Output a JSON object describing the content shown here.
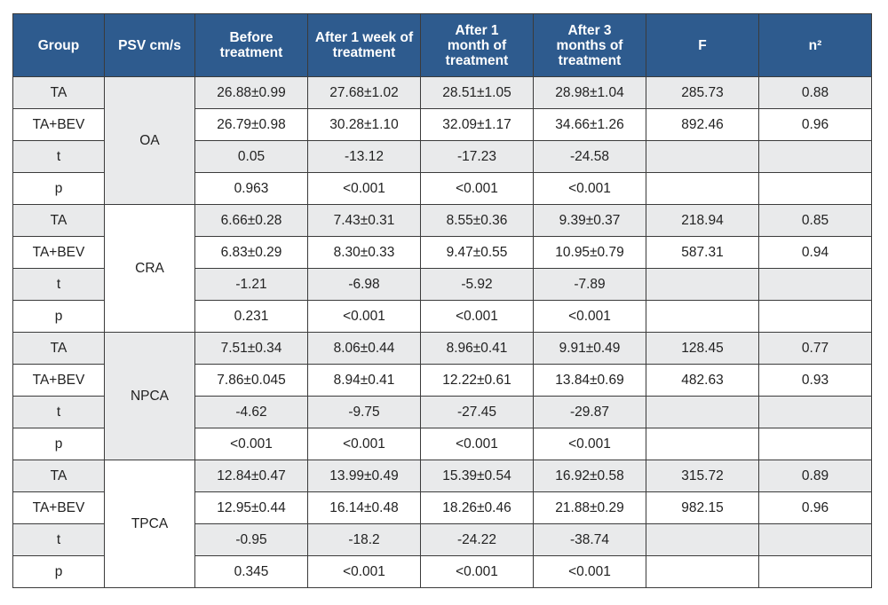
{
  "table": {
    "headers": [
      "Group",
      "PSV cm/s",
      "Before treatment",
      "After 1 week of treatment",
      "After 1 month of treatment",
      "After 3 months of treatment",
      "F",
      "n²"
    ],
    "blocks": [
      {
        "vessel": "OA",
        "rows": [
          {
            "group": "TA",
            "before": "26.88±0.99",
            "week1": "27.68±1.02",
            "month1": "28.51±1.05",
            "month3": "28.98±1.04",
            "f": "285.73",
            "n2": "0.88"
          },
          {
            "group": "TA+BEV",
            "before": "26.79±0.98",
            "week1": "30.28±1.10",
            "month1": "32.09±1.17",
            "month3": "34.66±1.26",
            "f": "892.46",
            "n2": "0.96"
          },
          {
            "group": "t",
            "before": "0.05",
            "week1": "-13.12",
            "month1": "-17.23",
            "month3": "-24.58",
            "f": "",
            "n2": ""
          },
          {
            "group": "p",
            "before": "0.963",
            "week1": "<0.001",
            "month1": "<0.001",
            "month3": "<0.001",
            "f": "",
            "n2": ""
          }
        ]
      },
      {
        "vessel": "CRA",
        "rows": [
          {
            "group": "TA",
            "before": "6.66±0.28",
            "week1": "7.43±0.31",
            "month1": "8.55±0.36",
            "month3": "9.39±0.37",
            "f": "218.94",
            "n2": "0.85"
          },
          {
            "group": "TA+BEV",
            "before": "6.83±0.29",
            "week1": "8.30±0.33",
            "month1": "9.47±0.55",
            "month3": "10.95±0.79",
            "f": "587.31",
            "n2": "0.94"
          },
          {
            "group": "t",
            "before": "-1.21",
            "week1": "-6.98",
            "month1": "-5.92",
            "month3": "-7.89",
            "f": "",
            "n2": ""
          },
          {
            "group": "p",
            "before": "0.231",
            "week1": "<0.001",
            "month1": "<0.001",
            "month3": "<0.001",
            "f": "",
            "n2": ""
          }
        ]
      },
      {
        "vessel": "NPCA",
        "rows": [
          {
            "group": "TA",
            "before": "7.51±0.34",
            "week1": "8.06±0.44",
            "month1": "8.96±0.41",
            "month3": "9.91±0.49",
            "f": "128.45",
            "n2": "0.77"
          },
          {
            "group": "TA+BEV",
            "before": "7.86±0.045",
            "week1": "8.94±0.41",
            "month1": "12.22±0.61",
            "month3": "13.84±0.69",
            "f": "482.63",
            "n2": "0.93"
          },
          {
            "group": "t",
            "before": "-4.62",
            "week1": "-9.75",
            "month1": "-27.45",
            "month3": "-29.87",
            "f": "",
            "n2": ""
          },
          {
            "group": "p",
            "before": "<0.001",
            "week1": "<0.001",
            "month1": "<0.001",
            "month3": "<0.001",
            "f": "",
            "n2": ""
          }
        ]
      },
      {
        "vessel": "TPCA",
        "rows": [
          {
            "group": "TA",
            "before": "12.84±0.47",
            "week1": "13.99±0.49",
            "month1": "15.39±0.54",
            "month3": "16.92±0.58",
            "f": "315.72",
            "n2": "0.89"
          },
          {
            "group": "TA+BEV",
            "before": "12.95±0.44",
            "week1": "16.14±0.48",
            "month1": "18.26±0.46",
            "month3": "21.88±0.29",
            "f": "982.15",
            "n2": "0.96"
          },
          {
            "group": "t",
            "before": "-0.95",
            "week1": "-18.2",
            "month1": "-24.22",
            "month3": "-38.74",
            "f": "",
            "n2": ""
          },
          {
            "group": "p",
            "before": "0.345",
            "week1": "<0.001",
            "month1": "<0.001",
            "month3": "<0.001",
            "f": "",
            "n2": ""
          }
        ]
      }
    ]
  }
}
